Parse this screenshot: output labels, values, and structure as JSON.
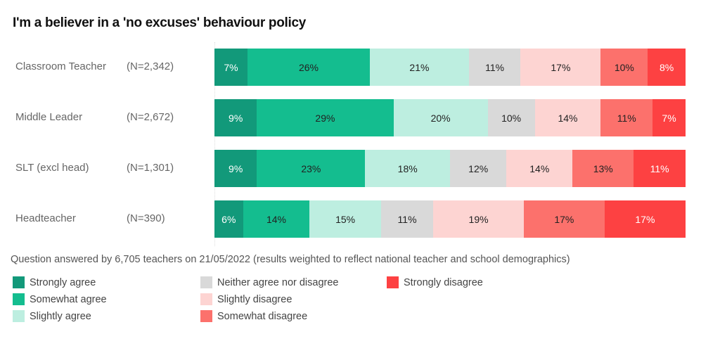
{
  "chart_data": {
    "type": "bar",
    "orientation": "horizontal",
    "stacked": true,
    "title": "I'm a believer in a 'no excuses' behaviour policy",
    "categories": [
      "Classroom Teacher",
      "Middle Leader",
      "SLT (excl head)",
      "Headteacher"
    ],
    "sample_sizes": [
      "(N=2,342)",
      "(N=2,672)",
      "(N=1,301)",
      "(N=390)"
    ],
    "series": [
      {
        "name": "Strongly agree",
        "color": "#12997a",
        "label_color": "#ffffff",
        "values": [
          7,
          9,
          9,
          6
        ]
      },
      {
        "name": "Somewhat agree",
        "color": "#14bd8f",
        "label_color": "#222222",
        "values": [
          26,
          29,
          23,
          14
        ]
      },
      {
        "name": "Slightly agree",
        "color": "#bdeee0",
        "label_color": "#222222",
        "values": [
          21,
          20,
          18,
          15
        ]
      },
      {
        "name": "Neither agree nor disagree",
        "color": "#d9d9d9",
        "label_color": "#222222",
        "values": [
          11,
          10,
          12,
          11
        ]
      },
      {
        "name": "Slightly disagree",
        "color": "#fdd4d2",
        "label_color": "#222222",
        "values": [
          17,
          14,
          14,
          19
        ]
      },
      {
        "name": "Somewhat disagree",
        "color": "#fc716c",
        "label_color": "#222222",
        "values": [
          10,
          11,
          13,
          17
        ]
      },
      {
        "name": "Strongly disagree",
        "color": "#fd4142",
        "label_color": "#ffffff",
        "values": [
          8,
          7,
          11,
          17
        ]
      }
    ],
    "value_suffix": "%",
    "xlim": [
      0,
      100
    ],
    "grid": false,
    "legend_placement": "bottom-left",
    "note": "Question answered by 6,705 teachers on 21/05/2022 (results weighted to reflect national teacher and school demographics)"
  }
}
